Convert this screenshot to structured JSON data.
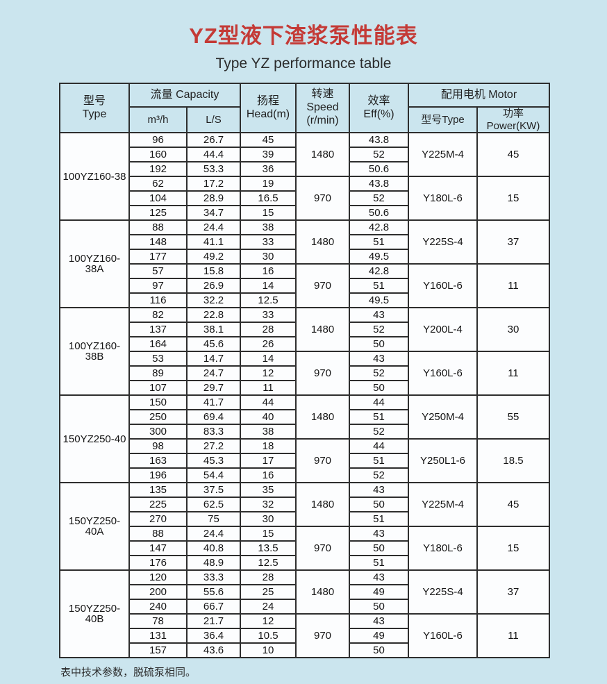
{
  "page": {
    "title": "YZ型液下渣浆泵性能表",
    "subtitle": "Type YZ performance table",
    "footnote": "表中技术参数，脱硫泵相同。",
    "colors": {
      "page_background": "#cbe5ee",
      "title_red": "#c43a36",
      "table_border": "#2e2e2e",
      "data_cell_background": "#fcfdfe"
    }
  },
  "table": {
    "headers": {
      "type": "型号\nType",
      "capacity": "流量 Capacity",
      "capacity_m3h": "m³/h",
      "capacity_ls": "L/S",
      "head": "扬程\nHead(m)",
      "speed": "转速\nSpeed\n(r/min)",
      "eff": "效率\nEff(%)",
      "motor": "配用电机 Motor",
      "motor_type": "型号Type",
      "motor_power": "功率Power(KW)"
    },
    "groups": [
      {
        "model": "100YZ160-38",
        "subgroups": [
          {
            "speed": "1480",
            "motor_type": "Y225M-4",
            "power": "45",
            "rows": [
              {
                "m3h": "96",
                "ls": "26.7",
                "head": "45",
                "eff": "43.8"
              },
              {
                "m3h": "160",
                "ls": "44.4",
                "head": "39",
                "eff": "52"
              },
              {
                "m3h": "192",
                "ls": "53.3",
                "head": "36",
                "eff": "50.6"
              }
            ]
          },
          {
            "speed": "970",
            "motor_type": "Y180L-6",
            "power": "15",
            "rows": [
              {
                "m3h": "62",
                "ls": "17.2",
                "head": "19",
                "eff": "43.8"
              },
              {
                "m3h": "104",
                "ls": "28.9",
                "head": "16.5",
                "eff": "52"
              },
              {
                "m3h": "125",
                "ls": "34.7",
                "head": "15",
                "eff": "50.6"
              }
            ]
          }
        ]
      },
      {
        "model": "100YZ160-38A",
        "subgroups": [
          {
            "speed": "1480",
            "motor_type": "Y225S-4",
            "power": "37",
            "rows": [
              {
                "m3h": "88",
                "ls": "24.4",
                "head": "38",
                "eff": "42.8"
              },
              {
                "m3h": "148",
                "ls": "41.1",
                "head": "33",
                "eff": "51"
              },
              {
                "m3h": "177",
                "ls": "49.2",
                "head": "30",
                "eff": "49.5"
              }
            ]
          },
          {
            "speed": "970",
            "motor_type": "Y160L-6",
            "power": "11",
            "rows": [
              {
                "m3h": "57",
                "ls": "15.8",
                "head": "16",
                "eff": "42.8"
              },
              {
                "m3h": "97",
                "ls": "26.9",
                "head": "14",
                "eff": "51"
              },
              {
                "m3h": "116",
                "ls": "32.2",
                "head": "12.5",
                "eff": "49.5"
              }
            ]
          }
        ]
      },
      {
        "model": "100YZ160-38B",
        "subgroups": [
          {
            "speed": "1480",
            "motor_type": "Y200L-4",
            "power": "30",
            "rows": [
              {
                "m3h": "82",
                "ls": "22.8",
                "head": "33",
                "eff": "43"
              },
              {
                "m3h": "137",
                "ls": "38.1",
                "head": "28",
                "eff": "52"
              },
              {
                "m3h": "164",
                "ls": "45.6",
                "head": "26",
                "eff": "50"
              }
            ]
          },
          {
            "speed": "970",
            "motor_type": "Y160L-6",
            "power": "11",
            "rows": [
              {
                "m3h": "53",
                "ls": "14.7",
                "head": "14",
                "eff": "43"
              },
              {
                "m3h": "89",
                "ls": "24.7",
                "head": "12",
                "eff": "52"
              },
              {
                "m3h": "107",
                "ls": "29.7",
                "head": "11",
                "eff": "50"
              }
            ]
          }
        ]
      },
      {
        "model": "150YZ250-40",
        "subgroups": [
          {
            "speed": "1480",
            "motor_type": "Y250M-4",
            "power": "55",
            "rows": [
              {
                "m3h": "150",
                "ls": "41.7",
                "head": "44",
                "eff": "44"
              },
              {
                "m3h": "250",
                "ls": "69.4",
                "head": "40",
                "eff": "51"
              },
              {
                "m3h": "300",
                "ls": "83.3",
                "head": "38",
                "eff": "52"
              }
            ]
          },
          {
            "speed": "970",
            "motor_type": "Y250L1-6",
            "power": "18.5",
            "rows": [
              {
                "m3h": "98",
                "ls": "27.2",
                "head": "18",
                "eff": "44"
              },
              {
                "m3h": "163",
                "ls": "45.3",
                "head": "17",
                "eff": "51"
              },
              {
                "m3h": "196",
                "ls": "54.4",
                "head": "16",
                "eff": "52"
              }
            ]
          }
        ]
      },
      {
        "model": "150YZ250-40A",
        "subgroups": [
          {
            "speed": "1480",
            "motor_type": "Y225M-4",
            "power": "45",
            "rows": [
              {
                "m3h": "135",
                "ls": "37.5",
                "head": "35",
                "eff": "43"
              },
              {
                "m3h": "225",
                "ls": "62.5",
                "head": "32",
                "eff": "50"
              },
              {
                "m3h": "270",
                "ls": "75",
                "head": "30",
                "eff": "51"
              }
            ]
          },
          {
            "speed": "970",
            "motor_type": "Y180L-6",
            "power": "15",
            "rows": [
              {
                "m3h": "88",
                "ls": "24.4",
                "head": "15",
                "eff": "43"
              },
              {
                "m3h": "147",
                "ls": "40.8",
                "head": "13.5",
                "eff": "50"
              },
              {
                "m3h": "176",
                "ls": "48.9",
                "head": "12.5",
                "eff": "51"
              }
            ]
          }
        ]
      },
      {
        "model": "150YZ250-40B",
        "subgroups": [
          {
            "speed": "1480",
            "motor_type": "Y225S-4",
            "power": "37",
            "rows": [
              {
                "m3h": "120",
                "ls": "33.3",
                "head": "28",
                "eff": "43"
              },
              {
                "m3h": "200",
                "ls": "55.6",
                "head": "25",
                "eff": "49"
              },
              {
                "m3h": "240",
                "ls": "66.7",
                "head": "24",
                "eff": "50"
              }
            ]
          },
          {
            "speed": "970",
            "motor_type": "Y160L-6",
            "power": "11",
            "rows": [
              {
                "m3h": "78",
                "ls": "21.7",
                "head": "12",
                "eff": "43"
              },
              {
                "m3h": "131",
                "ls": "36.4",
                "head": "10.5",
                "eff": "49"
              },
              {
                "m3h": "157",
                "ls": "43.6",
                "head": "10",
                "eff": "50"
              }
            ]
          }
        ]
      }
    ]
  }
}
